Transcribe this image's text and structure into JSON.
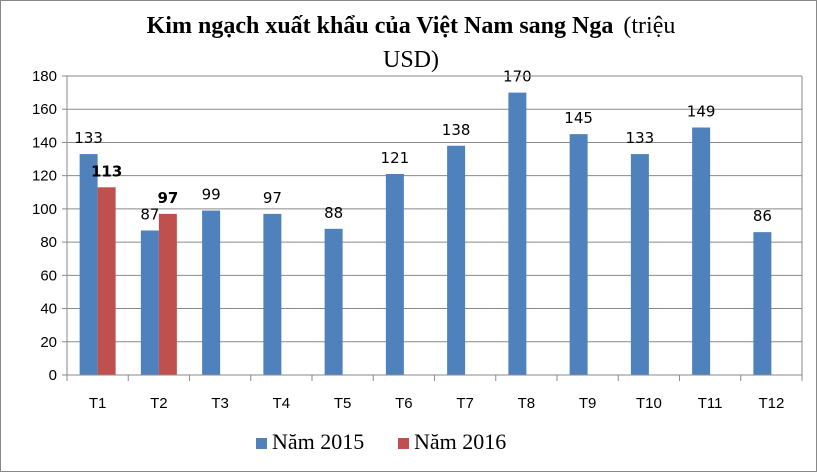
{
  "chart_data": {
    "type": "bar",
    "title": "Kim ngạch xuất khẩu của Việt Nam sang Nga (triệu USD)",
    "title_bold_part": "Kim ngạch xuất khẩu của Việt Nam sang Nga",
    "title_normal_part": "(triệu",
    "title_second_line": "USD)",
    "categories": [
      "T1",
      "T2",
      "T3",
      "T4",
      "T5",
      "T6",
      "T7",
      "T8",
      "T9",
      "T10",
      "T11",
      "T12"
    ],
    "series": [
      {
        "name": "Năm 2015",
        "color": "#4F81BD",
        "values": [
          133,
          87,
          99,
          97,
          88,
          121,
          138,
          170,
          145,
          133,
          149,
          86
        ],
        "label_bold": false
      },
      {
        "name": "Năm 2016",
        "color": "#C0504D",
        "values": [
          113,
          97,
          null,
          null,
          null,
          null,
          null,
          null,
          null,
          null,
          null,
          null
        ],
        "label_bold": true
      }
    ],
    "ylim": [
      0,
      180
    ],
    "yticks": [
      0,
      20,
      40,
      60,
      80,
      100,
      120,
      140,
      160,
      180
    ],
    "grid": true,
    "legend_position": "bottom"
  }
}
